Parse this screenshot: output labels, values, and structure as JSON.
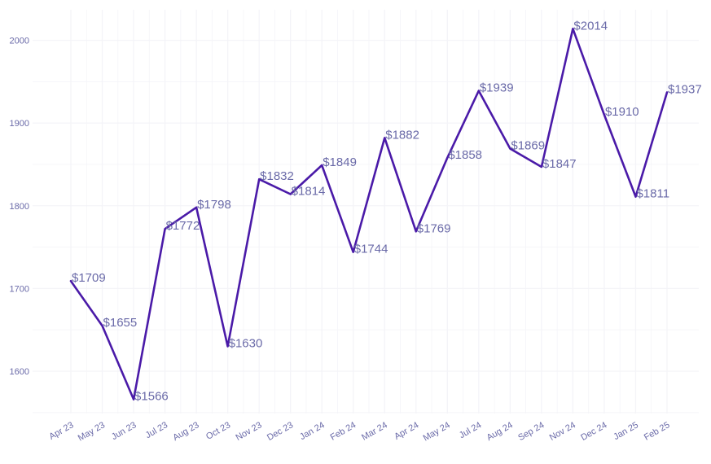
{
  "chart_data": {
    "type": "line",
    "title": "",
    "xlabel": "",
    "ylabel": "",
    "categories": [
      "Apr 23",
      "May 23",
      "Jun 23",
      "Jul 23",
      "Aug 23",
      "Oct 23",
      "Nov 23",
      "Dec 23",
      "Jan 24",
      "Feb 24",
      "Mar 24",
      "Apr 24",
      "May 24",
      "Jul 24",
      "Aug 24",
      "Sep 24",
      "Nov 24",
      "Dec 24",
      "Jan 25",
      "Feb 25"
    ],
    "series": [
      {
        "values": [
          1709,
          1655,
          1566,
          1772,
          1798,
          1630,
          1832,
          1814,
          1849,
          1744,
          1882,
          1769,
          1858,
          1939,
          1869,
          1847,
          2014,
          1910,
          1811,
          1937
        ],
        "labels": [
          "$1709",
          "$1655",
          "$1566",
          "$1772",
          "$1798",
          "$1630",
          "$1832",
          "$1814",
          "$1849",
          "$1744",
          "$1882",
          "$1769",
          "$1858",
          "$1939",
          "$1869",
          "$1847",
          "$2014",
          "$1910",
          "$1811",
          "$1937"
        ]
      }
    ],
    "y_ticks": [
      "1600",
      "1700",
      "1800",
      "1900",
      "2000"
    ],
    "ylim": [
      1510,
      2035
    ],
    "grid": true,
    "legend": "none",
    "colors": {
      "line": "#4a1aa8",
      "tick_text": "#6a6aa8",
      "label_text": "#6a6aa8",
      "grid": "#f4f4f8"
    }
  }
}
